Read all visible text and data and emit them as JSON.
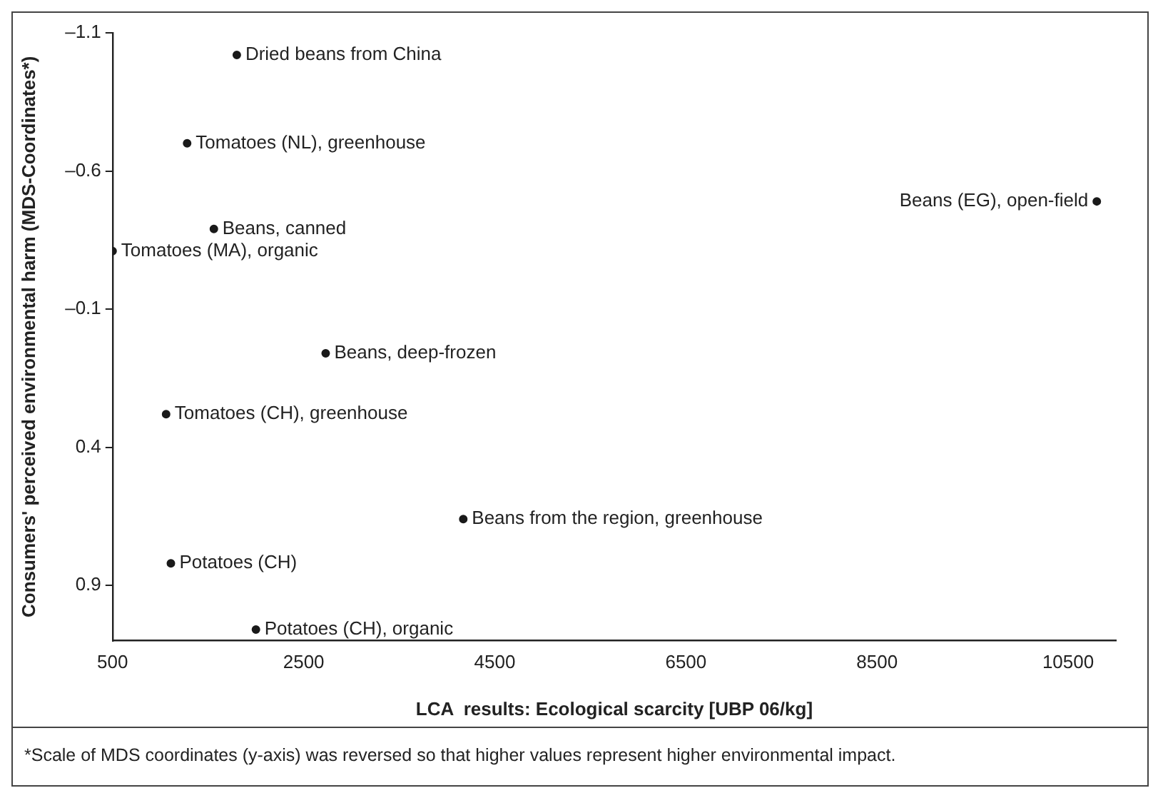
{
  "chart_data": {
    "type": "scatter",
    "xlabel": "LCA  results: Ecological scarcity [UBP 06/kg]",
    "ylabel": "Consumers' perceived environmental harm (MDS-Coordinates*)",
    "x": [
      1800,
      1280,
      1560,
      500,
      2730,
      1060,
      1110,
      2000,
      10800,
      4170
    ],
    "series": [
      {
        "color": "#1a1a1a",
        "values": [
          -1.02,
          -0.7,
          -0.39,
          -0.31,
          0.06,
          0.28,
          0.82,
          1.06,
          -0.49,
          0.66
        ]
      }
    ],
    "xlim": [
      500,
      11000
    ],
    "xticks": [
      500,
      2500,
      4500,
      6500,
      8500,
      10500
    ],
    "ylim": [
      1.1,
      -1.1
    ],
    "yticks": [
      {
        "value": -1.1,
        "label": "–1.1"
      },
      {
        "value": -0.6,
        "label": "–0.6"
      },
      {
        "value": -0.1,
        "label": "–0.1"
      },
      0.4,
      0.9
    ],
    "grid": false,
    "legend": false,
    "marker": "circle",
    "annotations": [
      {
        "text": "Dried beans from China",
        "x": 1800,
        "y": -1.02
      },
      {
        "text": "Tomatoes (NL), greenhouse",
        "x": 1280,
        "y": -0.7
      },
      {
        "text": "Beans, canned",
        "x": 1560,
        "y": -0.39
      },
      {
        "text": "Tomatoes (MA), organic",
        "x": 500,
        "y": -0.31
      },
      {
        "text": "Beans, deep-frozen",
        "x": 2730,
        "y": 0.06
      },
      {
        "text": "Tomatoes (CH), greenhouse",
        "x": 1060,
        "y": 0.28
      },
      {
        "text": "Potatoes (CH)",
        "x": 1110,
        "y": 0.82
      },
      {
        "text": "Potatoes (CH), organic",
        "x": 2000,
        "y": 1.06
      },
      {
        "text": "Beans (EG), open-field",
        "x": 10800,
        "y": -0.49
      },
      {
        "text": "Beans from the region, greenhouse",
        "x": 4170,
        "y": 0.66
      },
      "*Scale of MDS coordinates (y-axis) was reversed so that higher values represent higher environmental impact."
    ]
  }
}
